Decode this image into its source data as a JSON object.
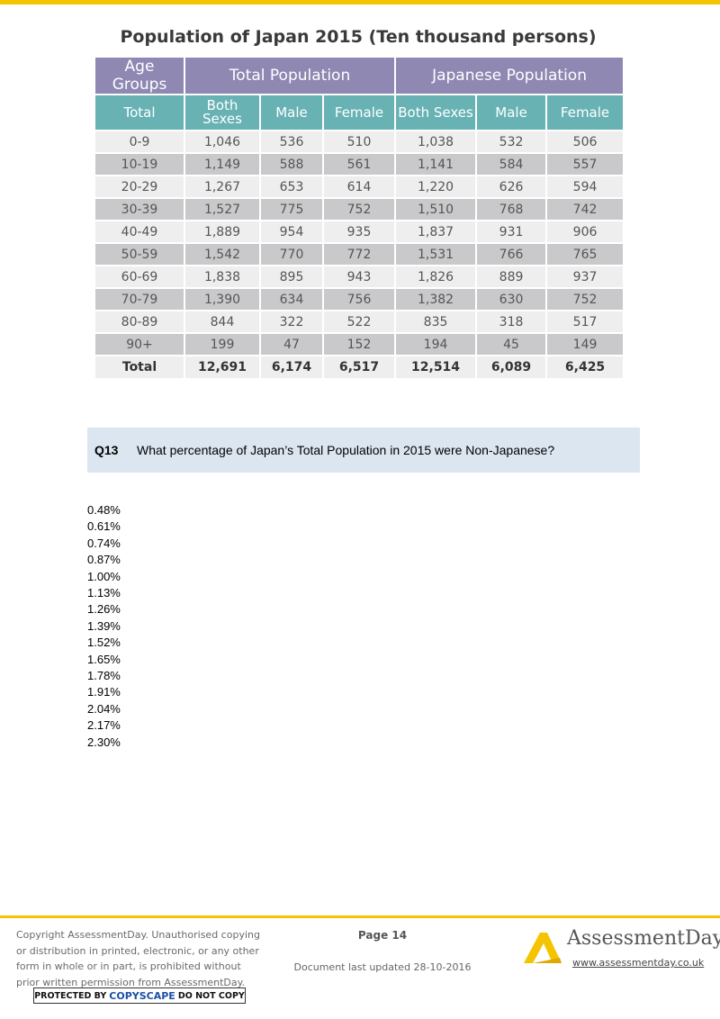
{
  "title": "Population of Japan 2015 (Ten thousand persons)",
  "table": {
    "group_header": {
      "first": "Age Groups",
      "total_population": "Total Population",
      "japanese_population": "Japanese Population"
    },
    "sub_header": {
      "col0": "Total",
      "both_sexes_line1": "Both",
      "both_sexes_line2": "Sexes",
      "male": "Male",
      "female": "Female",
      "jp_both": "Both Sexes",
      "jp_male": "Male",
      "jp_female": "Female"
    },
    "rows": [
      {
        "age": "0-9",
        "total_both": "1,046",
        "total_male": "536",
        "total_female": "510",
        "jp_both": "1,038",
        "jp_male": "532",
        "jp_female": "506"
      },
      {
        "age": "10-19",
        "total_both": "1,149",
        "total_male": "588",
        "total_female": "561",
        "jp_both": "1,141",
        "jp_male": "584",
        "jp_female": "557"
      },
      {
        "age": "20-29",
        "total_both": "1,267",
        "total_male": "653",
        "total_female": "614",
        "jp_both": "1,220",
        "jp_male": "626",
        "jp_female": "594"
      },
      {
        "age": "30-39",
        "total_both": "1,527",
        "total_male": "775",
        "total_female": "752",
        "jp_both": "1,510",
        "jp_male": "768",
        "jp_female": "742"
      },
      {
        "age": "40-49",
        "total_both": "1,889",
        "total_male": "954",
        "total_female": "935",
        "jp_both": "1,837",
        "jp_male": "931",
        "jp_female": "906"
      },
      {
        "age": "50-59",
        "total_both": "1,542",
        "total_male": "770",
        "total_female": "772",
        "jp_both": "1,531",
        "jp_male": "766",
        "jp_female": "765"
      },
      {
        "age": "60-69",
        "total_both": "1,838",
        "total_male": "895",
        "total_female": "943",
        "jp_both": "1,826",
        "jp_male": "889",
        "jp_female": "937"
      },
      {
        "age": "70-79",
        "total_both": "1,390",
        "total_male": "634",
        "total_female": "756",
        "jp_both": "1,382",
        "jp_male": "630",
        "jp_female": "752"
      },
      {
        "age": "80-89",
        "total_both": "844",
        "total_male": "322",
        "total_female": "522",
        "jp_both": "835",
        "jp_male": "318",
        "jp_female": "517"
      },
      {
        "age": "90+",
        "total_both": "199",
        "total_male": "47",
        "total_female": "152",
        "jp_both": "194",
        "jp_male": "45",
        "jp_female": "149"
      }
    ],
    "total_row": {
      "age": "Total",
      "total_both": "12,691",
      "total_male": "6,174",
      "total_female": "6,517",
      "jp_both": "12,514",
      "jp_male": "6,089",
      "jp_female": "6,425"
    }
  },
  "question": {
    "number": "Q13",
    "text": "What percentage of Japan’s Total Population in 2015 were Non-Japanese?"
  },
  "options": [
    "0.48%",
    "0.61%",
    "0.74%",
    "0.87%",
    "1.00%",
    "1.13%",
    "1.26%",
    "1.39%",
    "1.52%",
    "1.65%",
    "1.78%",
    "1.91%",
    "2.04%",
    "2.17%",
    "2.30%"
  ],
  "footer": {
    "copyright_lines": [
      "Copyright AssessmentDay. Unauthorised copying",
      "or distribution in printed, electronic, or any other",
      "form in whole or in part, is prohibited without",
      "prior written permission from AssessmentDay."
    ],
    "copyscape_prefix": "PROTECTED BY",
    "copyscape_brand": "COPYSCAPE",
    "copyscape_suffix": "DO NOT COPY",
    "page_number": "Page 14",
    "last_updated": "Document last updated 28-10-2016",
    "logo_text": "AssessmentDay",
    "website": "www.assessmentday.co.uk"
  },
  "colors": {
    "accent": "#f5c400",
    "group_header_bg": "#8e88b2",
    "sub_header_bg": "#68b2b4",
    "question_bg": "#dce6f1"
  }
}
